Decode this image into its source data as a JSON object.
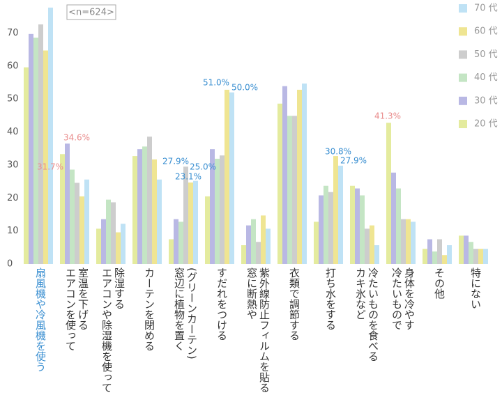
{
  "chart_data": {
    "type": "bar",
    "note": "<n=624>",
    "categories": [
      "扇風機や冷風機を使う",
      "エアコンを使って\n室温を下げる",
      "エアコンや除湿機を使って\n除湿する",
      "カーテンを閉める",
      "窓辺に植物を置く\n(グリーンカーテン)",
      "すだれをつける",
      "窓に断熱や\n紫外線防止フィルムを貼る",
      "衣類で調節する",
      "打ち水をする",
      "カキ氷など\n冷たいものを食べる",
      "冷たいもので\n身体を冷やす",
      "その他",
      "特にない"
    ],
    "series": [
      {
        "name": "20 代",
        "color": "#e4eb9e",
        "values": [
          59.6,
          33.3,
          10.7,
          32.7,
          7.5,
          20.5,
          5.7,
          48.6,
          12.8,
          23.7,
          42.8,
          4.6,
          8.6
        ]
      },
      {
        "name": "30 代",
        "color": "#b9b8e4",
        "values": [
          69.7,
          36.5,
          13.6,
          34.8,
          13.6,
          34.8,
          11.7,
          53.9,
          20.8,
          22.9,
          27.7,
          7.5,
          8.6
        ]
      },
      {
        "name": "40 代",
        "color": "#c4e5c4",
        "values": [
          68.6,
          28.6,
          19.5,
          35.6,
          12.8,
          31.9,
          13.6,
          44.9,
          23.7,
          20.8,
          22.9,
          3.8,
          6.7
        ]
      },
      {
        "name": "50 代",
        "color": "#cdcdcd",
        "values": [
          72.6,
          24.6,
          18.7,
          38.6,
          29.5,
          32.9,
          6.7,
          44.9,
          21.8,
          10.7,
          13.6,
          7.5,
          4.6
        ]
      },
      {
        "name": "60 代",
        "color": "#efe592",
        "values": [
          64.7,
          20.5,
          9.6,
          31.7,
          24.7,
          52.8,
          14.7,
          52.8,
          32.7,
          11.7,
          13.6,
          2.7,
          4.6
        ]
      },
      {
        "name": "70 代",
        "color": "#bfe2f5",
        "values": [
          77.7,
          25.6,
          12.2,
          25.6,
          25.2,
          52.0,
          10.7,
          54.7,
          29.8,
          5.7,
          12.8,
          5.7,
          4.6
        ]
      }
    ],
    "annotations": [
      {
        "text": "31.7%",
        "color": "#e98c8c"
      },
      {
        "text": "34.6%",
        "color": "#e98c8c"
      },
      {
        "text": "27.9%",
        "color": "#3a8fd1"
      },
      {
        "text": "25.0%",
        "color": "#3a8fd1"
      },
      {
        "text": "23.1%",
        "color": "#3a8fd1"
      },
      {
        "text": "51.0%",
        "color": "#3a8fd1"
      },
      {
        "text": "50.0%",
        "color": "#3a8fd1"
      },
      {
        "text": "30.8%",
        "color": "#3a8fd1"
      },
      {
        "text": "27.9%",
        "color": "#3a8fd1"
      },
      {
        "text": "41.3%",
        "color": "#e98c8c"
      }
    ],
    "highlight_color": "#3a8fd1",
    "ylim": [
      0,
      80
    ],
    "yticks": [
      0,
      10,
      20,
      30,
      40,
      50,
      60,
      70
    ]
  }
}
